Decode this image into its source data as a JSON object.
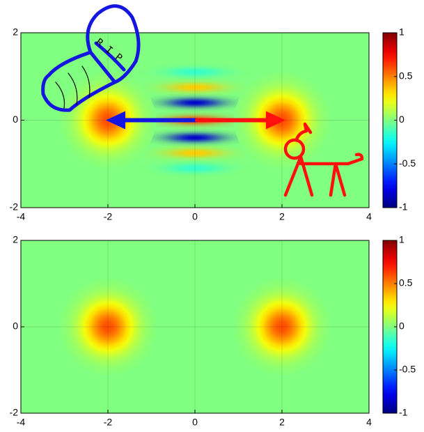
{
  "chart_data": [
    {
      "type": "heatmap",
      "annotation": "RIP",
      "colormap": "jet",
      "xlim": [
        -4,
        4
      ],
      "ylim": [
        -2,
        2
      ],
      "xticks": [
        -4,
        -2,
        0,
        2,
        4
      ],
      "yticks": [
        -2,
        0,
        2
      ],
      "clim": [
        -1,
        1
      ],
      "cticks": [
        -1,
        -0.5,
        0,
        0.5,
        1
      ],
      "grid": true,
      "peaks": [
        {
          "x": -2,
          "y": 0,
          "value": 0.6
        },
        {
          "x": 2,
          "y": 0,
          "value": 0.6
        }
      ],
      "fringes": [
        {
          "x": 0,
          "y": 1.1,
          "value": -0.15
        },
        {
          "x": 0,
          "y": 0.75,
          "value": 0.35
        },
        {
          "x": 0,
          "y": 0.4,
          "value": -0.85
        },
        {
          "x": 0,
          "y": 0,
          "value": 0.6
        },
        {
          "x": 0,
          "y": -0.4,
          "value": -0.85
        },
        {
          "x": 0,
          "y": -0.75,
          "value": 0.35
        },
        {
          "x": 0,
          "y": -1.1,
          "value": -0.15
        }
      ]
    },
    {
      "type": "heatmap",
      "colormap": "jet",
      "xlim": [
        -4,
        4
      ],
      "ylim": [
        -2,
        2
      ],
      "xticks": [
        -4,
        -2,
        0,
        2,
        4
      ],
      "yticks": [
        -2,
        0,
        2
      ],
      "clim": [
        -1,
        1
      ],
      "cticks": [
        -1,
        -0.5,
        0,
        0.5,
        1
      ],
      "grid": true,
      "peaks": [
        {
          "x": -2,
          "y": 0,
          "value": 0.6
        },
        {
          "x": 2,
          "y": 0,
          "value": 0.6
        }
      ]
    }
  ]
}
